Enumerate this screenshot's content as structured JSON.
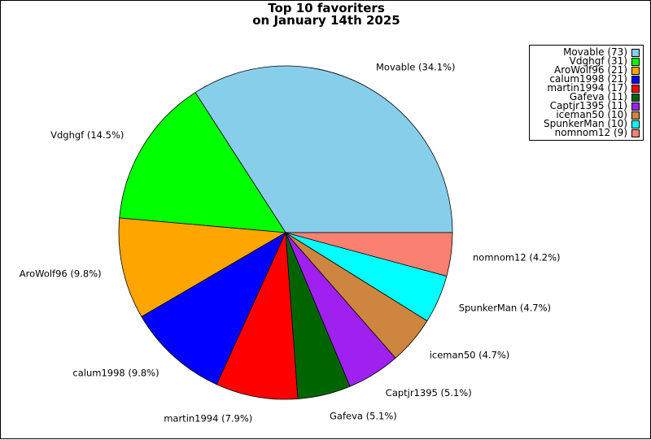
{
  "chart_data": {
    "type": "pie",
    "title": "Top 10 favoriters",
    "subtitle": "on January 14th 2025",
    "slices": [
      {
        "label": "Movable (34.1%)",
        "legend": "Movable (73)",
        "value": 73,
        "color": "#87ceeb"
      },
      {
        "label": "Vdghgf (14.5%)",
        "legend": "Vdghgf (31)",
        "value": 31,
        "color": "#00ff00"
      },
      {
        "label": "AroWolf96 (9.8%)",
        "legend": "AroWolf96 (21)",
        "value": 21,
        "color": "#ffa500"
      },
      {
        "label": "calum1998 (9.8%)",
        "legend": "calum1998 (21)",
        "value": 21,
        "color": "#0000ff"
      },
      {
        "label": "martin1994 (7.9%)",
        "legend": "martin1994 (17)",
        "value": 17,
        "color": "#ff0000"
      },
      {
        "label": "Gafeva (5.1%)",
        "legend": "Gafeva (11)",
        "value": 11,
        "color": "#006400"
      },
      {
        "label": "Captjr1395 (5.1%)",
        "legend": "Captjr1395 (11)",
        "value": 11,
        "color": "#a020f0"
      },
      {
        "label": "iceman50 (4.7%)",
        "legend": "iceman50 (10)",
        "value": 10,
        "color": "#cd853f"
      },
      {
        "label": "SpunkerMan (4.7%)",
        "legend": "SpunkerMan (10)",
        "value": 10,
        "color": "#00ffff"
      },
      {
        "label": "nomnom12 (4.2%)",
        "legend": "nomnom12 (9)",
        "value": 9,
        "color": "#fa8072"
      }
    ],
    "legend_position": "top-right"
  }
}
